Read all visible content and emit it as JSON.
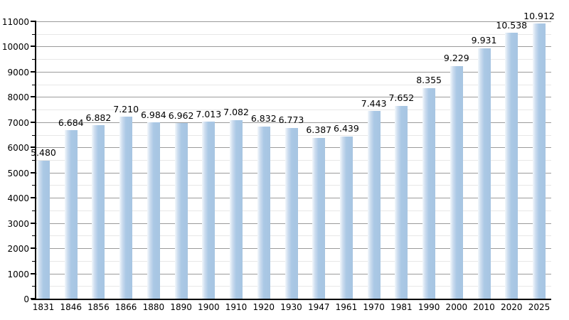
{
  "chart_data": {
    "type": "bar",
    "title": "",
    "xlabel": "",
    "ylabel": "",
    "categories": [
      "1831",
      "1846",
      "1856",
      "1866",
      "1880",
      "1890",
      "1900",
      "1910",
      "1920",
      "1930",
      "1947",
      "1961",
      "1970",
      "1981",
      "1990",
      "2000",
      "2010",
      "2020",
      "2025"
    ],
    "values": [
      5480,
      6684,
      6882,
      7210,
      6984,
      6962,
      7013,
      7082,
      6832,
      6773,
      6387,
      6439,
      7443,
      7652,
      8355,
      9229,
      9931,
      10538,
      10912
    ],
    "value_labels": [
      "5.480",
      "6.684",
      "6.882",
      "7.210",
      "6.984",
      "6.962",
      "7.013",
      "7.082",
      "6.832",
      "6.773",
      "6.387",
      "6.439",
      "7.443",
      "7.652",
      "8.355",
      "9.229",
      "9.931",
      "10.538",
      "10.912"
    ],
    "ylim": [
      0,
      11000
    ],
    "ytick_step": 1000,
    "minor_gridline_step": 500,
    "grid": true,
    "legend": false,
    "colors": {
      "bar_main": "#a7c5e2",
      "bar_gradient_light": "#f3f8fc",
      "grid_major": "#9b9b9b",
      "grid_minor": "#e7e7e7",
      "axis": "#000000",
      "text": "#000000",
      "background": "#ffffff"
    }
  }
}
